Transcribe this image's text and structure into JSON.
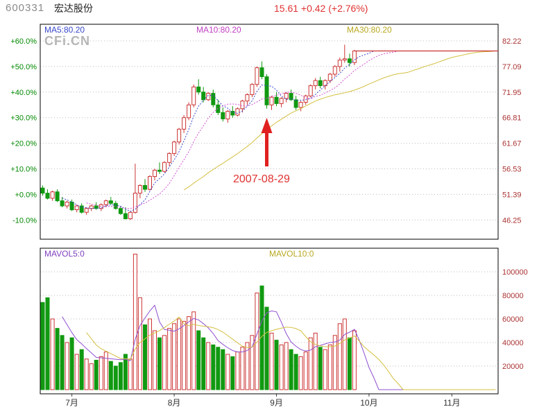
{
  "header": {
    "stock_code": "600331",
    "stock_name": "宏达股份",
    "price_info": "15.61 +0.42 (+2.76%)"
  },
  "watermark": "CFi.CN",
  "main_chart": {
    "legend_ma5": "MA5:80.20",
    "legend_ma10": "MA10:80.20",
    "legend_ma30": "MA30:80.20"
  },
  "volume_chart": {
    "legend_mavol5": "MAVOL5:0",
    "legend_mavol10": "MAVOL10:0"
  },
  "colors": {
    "up": "#cc3333",
    "down": "#119911",
    "ma5": "#3848c8",
    "ma10": "#d050d0",
    "ma30": "#d4c040",
    "mavol5": "#9050d0",
    "mavol10": "#d4c040",
    "price_axis": "#aa3333",
    "pct_axis": "#008800",
    "month_axis": "#333333",
    "grid": "#bbbbbb",
    "border": "#000000",
    "arrow": "#e02020",
    "flat_line": "#cc3333"
  },
  "chart_data": {
    "type": "candlestick",
    "title": "600331 宏达股份 daily candlestick with volume, Jun-Nov 2007, trading halt after last candle at 80.20",
    "base_price": 51.39,
    "halt_price": 80.2,
    "halt_pct": 56.06,
    "units": "candles are [open,high,low,close] in percent change vs base price 51.39 (price = 51.39*(1+pct/100)), 5th value = volume",
    "pct_axis": {
      "values": [
        60,
        50,
        40,
        30,
        20,
        10,
        0,
        -10
      ],
      "labels": [
        "+60.0%",
        "+50.0%",
        "+40.0%",
        "+30.0%",
        "+20.0%",
        "+10.0%",
        "+0.0%",
        "-10.0%"
      ],
      "range": [
        -17.5,
        66.5
      ]
    },
    "price_axis": {
      "labels": [
        "82.22",
        "77.09",
        "71.95",
        "66.81",
        "61.67",
        "56.53",
        "51.39",
        "46.25"
      ]
    },
    "vol_axis": {
      "values": [
        100000,
        80000,
        60000,
        40000,
        20000
      ],
      "labels": [
        "100000",
        "80000",
        "60000",
        "40000",
        "20000"
      ],
      "max_display": 120000
    },
    "months": [
      {
        "label": "7月",
        "slot": 6
      },
      {
        "label": "8月",
        "slot": 27
      },
      {
        "label": "9月",
        "slot": 48
      },
      {
        "label": "10月",
        "slot": 67
      },
      {
        "label": "11月",
        "slot": 84
      }
    ],
    "total_slots": 94,
    "annotation": {
      "date": "2007-08-29",
      "slot": 46
    },
    "overlays": {
      "MA5": 80.2,
      "MA10": 80.2,
      "MA30": 80.2,
      "MAVOL5": 0,
      "MAVOL10": 0
    },
    "candles": [
      [
        2.5,
        3.5,
        -0.5,
        0.5,
        74000
      ],
      [
        0.5,
        2.0,
        -2.0,
        -1.5,
        78000
      ],
      [
        -1.5,
        1.5,
        -2.5,
        1.0,
        60000
      ],
      [
        1.0,
        2.0,
        -3.0,
        -2.5,
        52000
      ],
      [
        -2.5,
        -1.0,
        -5.0,
        -4.5,
        46000
      ],
      [
        -4.5,
        -2.5,
        -5.5,
        -3.0,
        40000
      ],
      [
        -3.0,
        -2.0,
        -6.5,
        -6.0,
        44000
      ],
      [
        -6.0,
        -4.0,
        -7.0,
        -4.5,
        30000
      ],
      [
        -4.5,
        -3.5,
        -7.5,
        -7.0,
        34000
      ],
      [
        -7.0,
        -5.0,
        -8.0,
        -5.5,
        26000
      ],
      [
        -5.5,
        -4.0,
        -6.5,
        -4.5,
        22000
      ],
      [
        -4.5,
        -3.0,
        -6.0,
        -5.5,
        25000
      ],
      [
        -5.5,
        -3.5,
        -6.5,
        -4.0,
        28000
      ],
      [
        -4.0,
        -2.0,
        -5.0,
        -2.5,
        32000
      ],
      [
        -2.5,
        -1.0,
        -4.0,
        -3.5,
        24000
      ],
      [
        -3.5,
        -2.5,
        -6.0,
        -5.5,
        20000
      ],
      [
        -5.5,
        -4.5,
        -8.0,
        -7.5,
        23000
      ],
      [
        -7.5,
        -5.0,
        -9.8,
        -9.5,
        30000
      ],
      [
        -9.5,
        -6.5,
        -10.0,
        -7.0,
        26000
      ],
      [
        -7.0,
        12.0,
        -7.5,
        0.5,
        115000
      ],
      [
        0.5,
        4.0,
        -1.5,
        3.5,
        78000
      ],
      [
        3.5,
        6.0,
        1.0,
        2.0,
        55000
      ],
      [
        2.0,
        7.5,
        1.5,
        7.0,
        60000
      ],
      [
        7.0,
        10.0,
        5.5,
        9.5,
        50000
      ],
      [
        9.5,
        12.5,
        8.0,
        9.0,
        44000
      ],
      [
        9.0,
        13.0,
        8.5,
        12.5,
        46000
      ],
      [
        12.5,
        16.5,
        11.0,
        16.0,
        52000
      ],
      [
        16.0,
        21.0,
        15.0,
        20.5,
        56000
      ],
      [
        20.5,
        26.0,
        19.5,
        25.5,
        60000
      ],
      [
        25.5,
        31.0,
        24.0,
        30.0,
        58000
      ],
      [
        30.0,
        36.0,
        29.0,
        35.0,
        62000
      ],
      [
        35.0,
        43.0,
        34.0,
        42.0,
        66000
      ],
      [
        42.0,
        45.0,
        39.0,
        40.0,
        50000
      ],
      [
        40.0,
        42.0,
        36.0,
        37.0,
        44000
      ],
      [
        37.0,
        40.0,
        36.5,
        39.5,
        40000
      ],
      [
        39.5,
        41.0,
        34.0,
        35.0,
        38000
      ],
      [
        35.0,
        37.0,
        31.0,
        32.0,
        36000
      ],
      [
        32.0,
        34.0,
        28.5,
        29.5,
        34000
      ],
      [
        29.5,
        33.0,
        28.0,
        32.5,
        30000
      ],
      [
        32.5,
        34.5,
        30.0,
        31.0,
        28000
      ],
      [
        31.0,
        34.0,
        30.5,
        33.5,
        32000
      ],
      [
        33.5,
        37.0,
        32.0,
        36.5,
        36000
      ],
      [
        36.5,
        39.5,
        35.0,
        39.0,
        40000
      ],
      [
        39.0,
        43.5,
        38.0,
        43.0,
        46000
      ],
      [
        43.0,
        50.0,
        42.0,
        49.5,
        82000
      ],
      [
        49.5,
        52.0,
        45.0,
        46.0,
        88000
      ],
      [
        46.0,
        47.0,
        33.5,
        35.0,
        70000
      ],
      [
        35.0,
        38.5,
        33.0,
        38.0,
        48000
      ],
      [
        38.0,
        40.0,
        34.5,
        35.5,
        42000
      ],
      [
        35.5,
        38.0,
        34.0,
        37.5,
        38000
      ],
      [
        37.5,
        40.0,
        36.0,
        39.5,
        40000
      ],
      [
        39.5,
        41.0,
        36.5,
        37.0,
        34000
      ],
      [
        37.0,
        38.5,
        33.0,
        34.0,
        30000
      ],
      [
        34.0,
        36.5,
        32.5,
        36.0,
        28000
      ],
      [
        36.0,
        39.0,
        35.0,
        38.5,
        32000
      ],
      [
        38.5,
        43.0,
        38.0,
        42.5,
        44000
      ],
      [
        42.5,
        45.5,
        41.0,
        44.5,
        48000
      ],
      [
        44.5,
        46.0,
        41.5,
        42.5,
        36000
      ],
      [
        42.5,
        45.0,
        41.0,
        44.5,
        34000
      ],
      [
        44.5,
        47.5,
        43.5,
        47.0,
        38000
      ],
      [
        47.0,
        50.5,
        46.0,
        50.0,
        46000
      ],
      [
        50.0,
        53.5,
        48.0,
        52.5,
        56000
      ],
      [
        52.5,
        58.5,
        51.5,
        53.0,
        60000
      ],
      [
        53.0,
        55.0,
        50.0,
        51.5,
        44000
      ],
      [
        51.5,
        56.5,
        50.5,
        56.06,
        50000
      ]
    ]
  }
}
